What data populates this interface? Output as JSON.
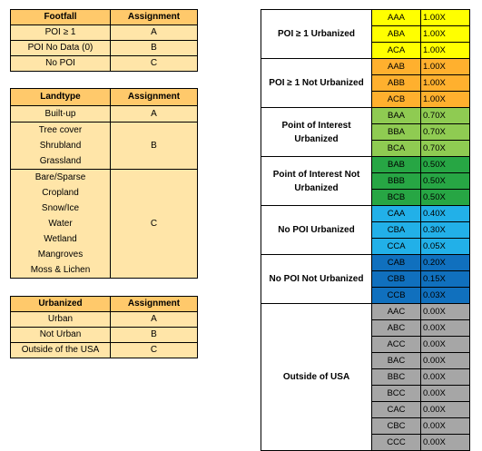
{
  "footfall": {
    "headers": [
      "Footfall",
      "Assignment"
    ],
    "rows": [
      {
        "label": "POI ≥ 1",
        "assignment": "A"
      },
      {
        "label": "POI No Data (0)",
        "assignment": "B"
      },
      {
        "label": "No POI",
        "assignment": "C"
      }
    ]
  },
  "landtype": {
    "headers": [
      "Landtype",
      "Assignment"
    ],
    "groups": [
      {
        "items": [
          "Built-up"
        ],
        "assignment": "A"
      },
      {
        "items": [
          "Tree cover",
          "Shrubland",
          "Grassland"
        ],
        "assignment": "B"
      },
      {
        "items": [
          "Bare/Sparse",
          "Cropland",
          "Snow/Ice",
          "Water",
          "Wetland",
          "Mangroves",
          "Moss & Lichen"
        ],
        "assignment": "C"
      }
    ]
  },
  "urbanized": {
    "headers": [
      "Urbanized",
      "Assignment"
    ],
    "rows": [
      {
        "label": "Urban",
        "assignment": "A"
      },
      {
        "label": "Not Urban",
        "assignment": "B"
      },
      {
        "label": "Outside of the USA",
        "assignment": "C"
      }
    ]
  },
  "classes": {
    "groups": [
      {
        "label": "POI ≥ 1 Urbanized",
        "color": "#FFFF00",
        "rows": [
          {
            "code": "AAA",
            "value": "1.00X"
          },
          {
            "code": "ABA",
            "value": "1.00X"
          },
          {
            "code": "ACA",
            "value": "1.00X"
          }
        ]
      },
      {
        "label": "POI ≥ 1 Not Urbanized",
        "color": "#FFB02E",
        "rows": [
          {
            "code": "AAB",
            "value": "1.00X"
          },
          {
            "code": "ABB",
            "value": "1.00X"
          },
          {
            "code": "ACB",
            "value": "1.00X"
          }
        ]
      },
      {
        "label": "Point of Interest Urbanized",
        "color": "#8FCB52",
        "rows": [
          {
            "code": "BAA",
            "value": "0.70X"
          },
          {
            "code": "BBA",
            "value": "0.70X"
          },
          {
            "code": "BCA",
            "value": "0.70X"
          }
        ]
      },
      {
        "label": "Point of Interest Not Urbanized",
        "color": "#27A644",
        "rows": [
          {
            "code": "BAB",
            "value": "0.50X"
          },
          {
            "code": "BBB",
            "value": "0.50X"
          },
          {
            "code": "BCB",
            "value": "0.50X"
          }
        ]
      },
      {
        "label": "No POI Urbanized",
        "color": "#22B0E8",
        "rows": [
          {
            "code": "CAA",
            "value": "0.40X"
          },
          {
            "code": "CBA",
            "value": "0.30X"
          },
          {
            "code": "CCA",
            "value": "0.05X"
          }
        ]
      },
      {
        "label": "No POI Not Urbanized",
        "color": "#1070BE",
        "rows": [
          {
            "code": "CAB",
            "value": "0.20X"
          },
          {
            "code": "CBB",
            "value": "0.15X"
          },
          {
            "code": "CCB",
            "value": "0.03X"
          }
        ]
      },
      {
        "label": "Outside of USA",
        "color": "#A6A6A6",
        "rows": [
          {
            "code": "AAC",
            "value": "0.00X"
          },
          {
            "code": "ABC",
            "value": "0.00X"
          },
          {
            "code": "ACC",
            "value": "0.00X"
          },
          {
            "code": "BAC",
            "value": "0.00X"
          },
          {
            "code": "BBC",
            "value": "0.00X"
          },
          {
            "code": "BCC",
            "value": "0.00X"
          },
          {
            "code": "CAC",
            "value": "0.00X"
          },
          {
            "code": "CBC",
            "value": "0.00X"
          },
          {
            "code": "CCC",
            "value": "0.00X"
          }
        ]
      }
    ]
  }
}
